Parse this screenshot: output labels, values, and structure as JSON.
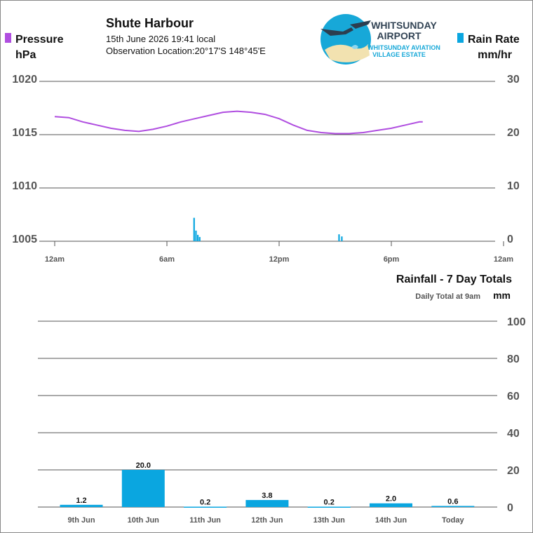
{
  "header": {
    "station": "Shute Harbour",
    "datetime": "15th June 2026  19:41 local",
    "location": "Observation Location:20°17'S 148°45'E"
  },
  "logo": {
    "line1": "WHITSUNDAY",
    "line2": "AIRPORT",
    "line3": "WHITSUNDAY AVIATION",
    "line4": "VILLAGE ESTATE"
  },
  "colors": {
    "pressure": "#b04ee0",
    "rain": "#0aa6e0",
    "grid": "#555555",
    "axis_text": "#555555"
  },
  "chart_data": [
    {
      "type": "line",
      "title": "",
      "legend_left": {
        "label": "Pressure",
        "unit": "hPa"
      },
      "legend_right": {
        "label": "Rain Rate",
        "unit": "mm/hr"
      },
      "x_ticks": [
        "12am",
        "6am",
        "12pm",
        "6pm",
        "12am"
      ],
      "x_range_hours": [
        0,
        24
      ],
      "y_left_ticks": [
        "1020",
        "1015",
        "1010",
        "1005"
      ],
      "y_left_range": [
        1005,
        1020
      ],
      "y_right_ticks": [
        "30",
        "20",
        "10",
        "0"
      ],
      "y_right_range": [
        0,
        30
      ],
      "series": [
        {
          "name": "Pressure",
          "axis": "left",
          "points": [
            [
              0,
              1016.7
            ],
            [
              0.75,
              1016.6
            ],
            [
              1.5,
              1016.2
            ],
            [
              2.25,
              1015.9
            ],
            [
              3,
              1015.6
            ],
            [
              3.75,
              1015.4
            ],
            [
              4.5,
              1015.3
            ],
            [
              5.25,
              1015.5
            ],
            [
              6,
              1015.8
            ],
            [
              6.75,
              1016.2
            ],
            [
              7.5,
              1016.5
            ],
            [
              8.25,
              1016.8
            ],
            [
              9,
              1017.1
            ],
            [
              9.75,
              1017.2
            ],
            [
              10.5,
              1017.1
            ],
            [
              11.25,
              1016.9
            ],
            [
              12,
              1016.5
            ],
            [
              12.75,
              1015.9
            ],
            [
              13.5,
              1015.4
            ],
            [
              14.25,
              1015.2
            ],
            [
              15,
              1015.1
            ],
            [
              15.75,
              1015.1
            ],
            [
              16.5,
              1015.2
            ],
            [
              17.25,
              1015.4
            ],
            [
              18,
              1015.6
            ],
            [
              18.75,
              1015.9
            ],
            [
              19.5,
              1016.2
            ],
            [
              19.68,
              1016.2
            ]
          ]
        },
        {
          "name": "Rain Rate",
          "axis": "right",
          "bars": [
            [
              7.45,
              4.4
            ],
            [
              7.55,
              2.0
            ],
            [
              7.65,
              1.2
            ],
            [
              7.75,
              0.8
            ],
            [
              15.2,
              1.3
            ],
            [
              15.35,
              0.9
            ]
          ]
        }
      ]
    },
    {
      "type": "bar",
      "title": "Rainfall - 7 Day Totals",
      "subtitle": "Daily Total at 9am",
      "ylabel": "mm",
      "categories": [
        "9th Jun",
        "10th Jun",
        "11th Jun",
        "12th Jun",
        "13th Jun",
        "14th Jun",
        "Today"
      ],
      "values": [
        1.2,
        20.0,
        0.2,
        3.8,
        0.2,
        2.0,
        0.6
      ],
      "value_labels": [
        "1.2",
        "20.0",
        "0.2",
        "3.8",
        "0.2",
        "2.0",
        "0.6"
      ],
      "y_ticks": [
        "100",
        "80",
        "60",
        "40",
        "20",
        "0"
      ],
      "ylim": [
        0,
        100
      ]
    }
  ]
}
